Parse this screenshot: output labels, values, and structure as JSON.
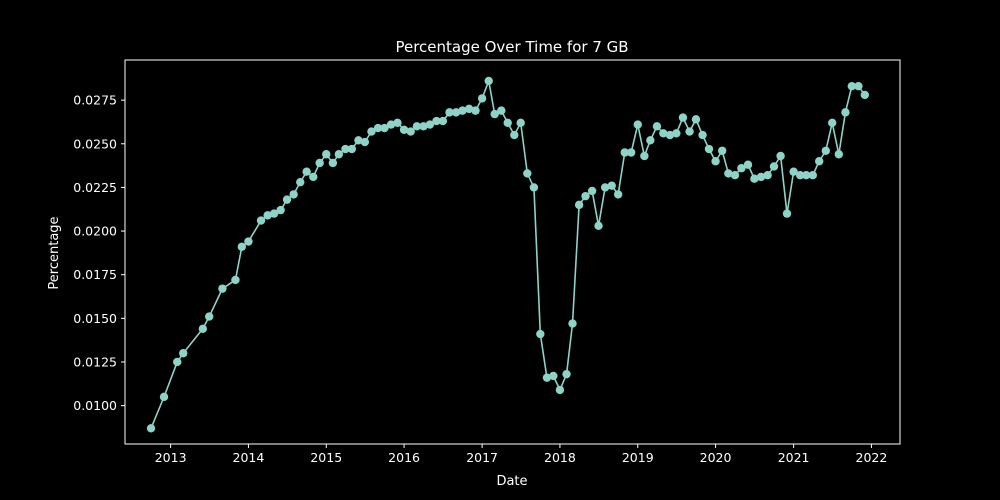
{
  "chart_data": {
    "type": "line",
    "title": "Percentage Over Time for 7 GB",
    "xlabel": "Date",
    "ylabel": "Percentage",
    "x_ticks": [
      "2013",
      "2014",
      "2015",
      "2016",
      "2017",
      "2018",
      "2019",
      "2020",
      "2021",
      "2022"
    ],
    "y_ticks": [
      "0.0100",
      "0.0125",
      "0.0150",
      "0.0175",
      "0.0200",
      "0.0225",
      "0.0250",
      "0.0275"
    ],
    "xlim": [
      "2012-06-01",
      "2022-05-15"
    ],
    "ylim": [
      0.0078,
      0.0298
    ],
    "grid": false,
    "colors": {
      "background": "#000000",
      "axes": "#ffffff",
      "series": "#8dd3c7"
    },
    "series": [
      {
        "x": [
          "2012-10-01",
          "2012-12-01",
          "2013-02-01",
          "2013-03-01",
          "2013-06-01",
          "2013-07-01",
          "2013-09-01",
          "2013-11-01",
          "2013-12-01",
          "2014-01-01",
          "2014-03-01",
          "2014-04-01",
          "2014-05-01",
          "2014-06-01",
          "2014-07-01",
          "2014-08-01",
          "2014-09-01",
          "2014-10-01",
          "2014-11-01",
          "2014-12-01",
          "2015-01-01",
          "2015-02-01",
          "2015-03-01",
          "2015-04-01",
          "2015-05-01",
          "2015-06-01",
          "2015-07-01",
          "2015-08-01",
          "2015-09-01",
          "2015-10-01",
          "2015-11-01",
          "2015-12-01",
          "2016-01-01",
          "2016-02-01",
          "2016-03-01",
          "2016-04-01",
          "2016-05-01",
          "2016-06-01",
          "2016-07-01",
          "2016-08-01",
          "2016-09-01",
          "2016-10-01",
          "2016-11-01",
          "2016-12-01",
          "2017-01-01",
          "2017-02-01",
          "2017-03-01",
          "2017-04-01",
          "2017-05-01",
          "2017-06-01",
          "2017-07-01",
          "2017-08-01",
          "2017-09-01",
          "2017-10-01",
          "2017-11-01",
          "2017-12-01",
          "2018-01-01",
          "2018-02-01",
          "2018-03-01",
          "2018-04-01",
          "2018-05-01",
          "2018-06-01",
          "2018-07-01",
          "2018-08-01",
          "2018-09-01",
          "2018-10-01",
          "2018-11-01",
          "2018-12-01",
          "2019-01-01",
          "2019-02-01",
          "2019-03-01",
          "2019-04-01",
          "2019-05-01",
          "2019-06-01",
          "2019-07-01",
          "2019-08-01",
          "2019-09-01",
          "2019-10-01",
          "2019-11-01",
          "2019-12-01",
          "2020-01-01",
          "2020-02-01",
          "2020-03-01",
          "2020-04-01",
          "2020-05-01",
          "2020-06-01",
          "2020-07-01",
          "2020-08-01",
          "2020-09-01",
          "2020-10-01",
          "2020-11-01",
          "2020-12-01",
          "2021-01-01",
          "2021-02-01",
          "2021-03-01",
          "2021-04-01",
          "2021-05-01",
          "2021-06-01",
          "2021-07-01",
          "2021-08-01",
          "2021-09-01",
          "2021-10-01",
          "2021-11-01",
          "2021-12-01"
        ],
        "y": [
          0.0087,
          0.0105,
          0.0125,
          0.013,
          0.0144,
          0.0151,
          0.0167,
          0.0172,
          0.0191,
          0.0194,
          0.0206,
          0.0209,
          0.021,
          0.0212,
          0.0218,
          0.0221,
          0.0228,
          0.0234,
          0.0231,
          0.0239,
          0.0244,
          0.0239,
          0.0244,
          0.0247,
          0.0247,
          0.0252,
          0.0251,
          0.0257,
          0.0259,
          0.0259,
          0.0261,
          0.0262,
          0.0258,
          0.0257,
          0.026,
          0.026,
          0.0261,
          0.0263,
          0.0263,
          0.0268,
          0.0268,
          0.0269,
          0.027,
          0.0269,
          0.0276,
          0.0286,
          0.0267,
          0.0269,
          0.0262,
          0.0255,
          0.0262,
          0.0233,
          0.0225,
          0.0141,
          0.0116,
          0.0117,
          0.0109,
          0.0118,
          0.0147,
          0.0215,
          0.022,
          0.0223,
          0.0203,
          0.0225,
          0.0226,
          0.0221,
          0.0245,
          0.0245,
          0.0261,
          0.0243,
          0.0252,
          0.026,
          0.0256,
          0.0255,
          0.0256,
          0.0265,
          0.0257,
          0.0264,
          0.0255,
          0.0247,
          0.024,
          0.0246,
          0.0233,
          0.0232,
          0.0236,
          0.0238,
          0.023,
          0.0231,
          0.0232,
          0.0237,
          0.0243,
          0.021,
          0.0234,
          0.0232,
          0.0232,
          0.0232,
          0.024,
          0.0246,
          0.0262,
          0.0244,
          0.0268,
          0.0283,
          0.0283,
          0.0278
        ]
      }
    ]
  }
}
